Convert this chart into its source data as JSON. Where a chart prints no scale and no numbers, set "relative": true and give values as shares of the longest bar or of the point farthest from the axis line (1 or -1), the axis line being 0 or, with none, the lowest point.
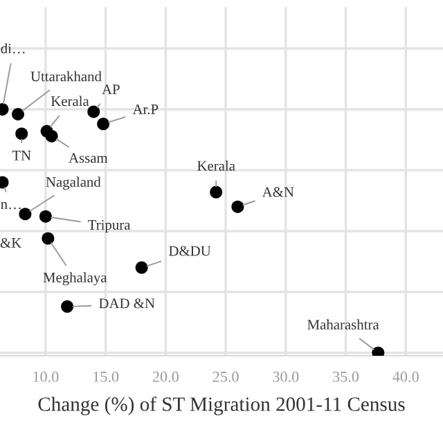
{
  "chart_data": {
    "type": "scatter",
    "xlabel": "Change (%) of ST Migration 2001-11 Census",
    "relative": true,
    "color": "#000000",
    "marker": "circle",
    "grid": true,
    "legend": false,
    "tick_labels": "x",
    "xlim": [
      6.2,
      43.1
    ],
    "xticks": [
      {
        "value": 10,
        "label": "10.0"
      },
      {
        "value": 15,
        "label": "15.0"
      },
      {
        "value": 20,
        "label": "20.0"
      },
      {
        "value": 25,
        "label": "25.0"
      },
      {
        "value": 30,
        "label": "30.0"
      },
      {
        "value": 35,
        "label": "35.0"
      },
      {
        "value": 40,
        "label": "40.0"
      }
    ],
    "x": [
      6.4,
      7.7,
      8.0,
      10.1,
      10.5,
      14.0,
      14.8,
      6.4,
      8.3,
      10.0,
      10.2,
      18.0,
      11.8,
      24.2,
      26.0,
      37.7
    ],
    "values": [
      1.0,
      0.98,
      0.9,
      0.91,
      0.89,
      0.99,
      0.94,
      0.7,
      0.57,
      0.56,
      0.47,
      0.35,
      0.19,
      0.66,
      0.6,
      0.0
    ],
    "annotations": [
      {
        "text": "di…",
        "x": 6.4,
        "y": 1.0
      },
      {
        "text": "Uttarakhand",
        "x": 7.7,
        "y": 0.98
      },
      {
        "text": "TN",
        "x": 8.0,
        "y": 0.9
      },
      {
        "text": "Kerala",
        "x": 10.1,
        "y": 0.91
      },
      {
        "text": "Assam",
        "x": 10.5,
        "y": 0.89
      },
      {
        "text": "AP",
        "x": 14.0,
        "y": 0.99
      },
      {
        "text": "Ar.P",
        "x": 14.8,
        "y": 0.94
      },
      {
        "text": "n…",
        "x": 6.4,
        "y": 0.7
      },
      {
        "text": "Nagaland",
        "x": 8.3,
        "y": 0.57
      },
      {
        "text": "Tripura",
        "x": 10.0,
        "y": 0.56
      },
      {
        "text": "Meghalaya",
        "x": 10.2,
        "y": 0.47
      },
      {
        "text": "D&DU",
        "x": 18.0,
        "y": 0.35
      },
      {
        "text": "DAD &N",
        "x": 11.8,
        "y": 0.19
      },
      {
        "text": "Kerala",
        "x": 24.2,
        "y": 0.66
      },
      {
        "text": "A&N",
        "x": 26.0,
        "y": 0.6
      },
      {
        "text": "Maharashtra",
        "x": 37.7,
        "y": 0.0
      },
      "&K"
    ]
  }
}
